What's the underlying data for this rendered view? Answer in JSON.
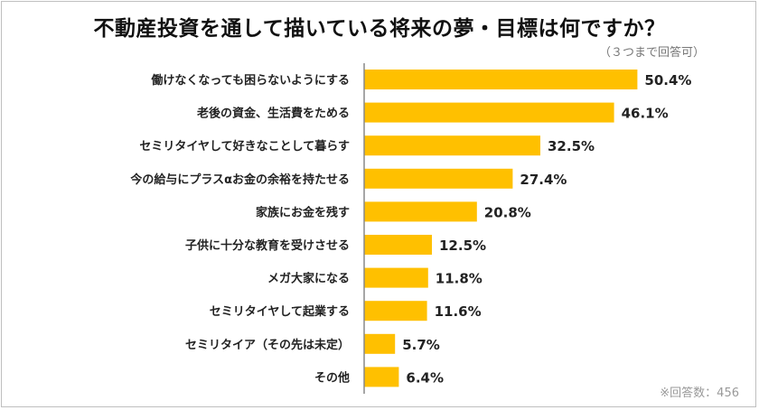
{
  "chart_data": {
    "type": "bar",
    "orientation": "horizontal",
    "title": "不動産投資を通して描いている将来の夢・目標は何ですか？",
    "subtitle": "（３つまで回答可）",
    "note": "※回答数：456",
    "categories": [
      "働けなくなっても困らないようにする",
      "老後の資金、生活費をためる",
      "セミリタイヤして好きなことして暮らす",
      "今の給与にプラスαお金の余裕を持たせる",
      "家族にお金を残す",
      "子供に十分な教育を受けさせる",
      "メガ大家になる",
      "セミリタイヤして起業する",
      "セミリタイア（その先は未定）",
      "その他"
    ],
    "values": [
      50.4,
      46.1,
      32.5,
      27.4,
      20.8,
      12.5,
      11.8,
      11.6,
      5.7,
      6.4
    ],
    "value_labels": [
      "50.4%",
      "46.1%",
      "32.5%",
      "27.4%",
      "20.8%",
      "12.5%",
      "11.8%",
      "11.6%",
      "5.7%",
      "6.4%"
    ],
    "unit": "%",
    "bar_color": "#FFC000",
    "grid": false,
    "legend": "none"
  }
}
